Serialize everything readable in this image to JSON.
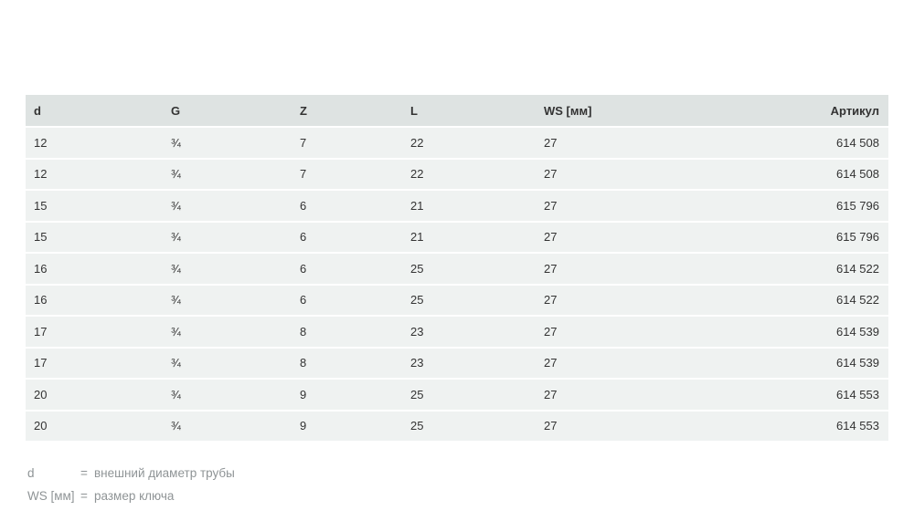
{
  "table": {
    "headers": [
      "d",
      "G",
      "Z",
      "L",
      "WS [мм]",
      "Артикул"
    ],
    "rows": [
      {
        "d": "12",
        "g": "¾",
        "z": "7",
        "l": "22",
        "ws": "27",
        "art": "614 508"
      },
      {
        "d": "12",
        "g": "¾",
        "z": "7",
        "l": "22",
        "ws": "27",
        "art": "614 508"
      },
      {
        "d": "15",
        "g": "¾",
        "z": "6",
        "l": "21",
        "ws": "27",
        "art": "615 796"
      },
      {
        "d": "15",
        "g": "¾",
        "z": "6",
        "l": "21",
        "ws": "27",
        "art": "615 796"
      },
      {
        "d": "16",
        "g": "¾",
        "z": "6",
        "l": "25",
        "ws": "27",
        "art": "614 522"
      },
      {
        "d": "16",
        "g": "¾",
        "z": "6",
        "l": "25",
        "ws": "27",
        "art": "614 522"
      },
      {
        "d": "17",
        "g": "¾",
        "z": "8",
        "l": "23",
        "ws": "27",
        "art": "614 539"
      },
      {
        "d": "17",
        "g": "¾",
        "z": "8",
        "l": "23",
        "ws": "27",
        "art": "614 539"
      },
      {
        "d": "20",
        "g": "¾",
        "z": "9",
        "l": "25",
        "ws": "27",
        "art": "614 553"
      },
      {
        "d": "20",
        "g": "¾",
        "z": "9",
        "l": "25",
        "ws": "27",
        "art": "614 553"
      }
    ]
  },
  "legend": [
    {
      "term": "d",
      "eq": "=",
      "definition": "внешний диаметр трубы"
    },
    {
      "term": "WS [мм]",
      "eq": "=",
      "definition": "размер ключа"
    }
  ],
  "colors": {
    "header_bg": "#dee3e2",
    "row_bg": "#eff2f1",
    "text": "#333333",
    "legend_text": "#8f9496"
  }
}
